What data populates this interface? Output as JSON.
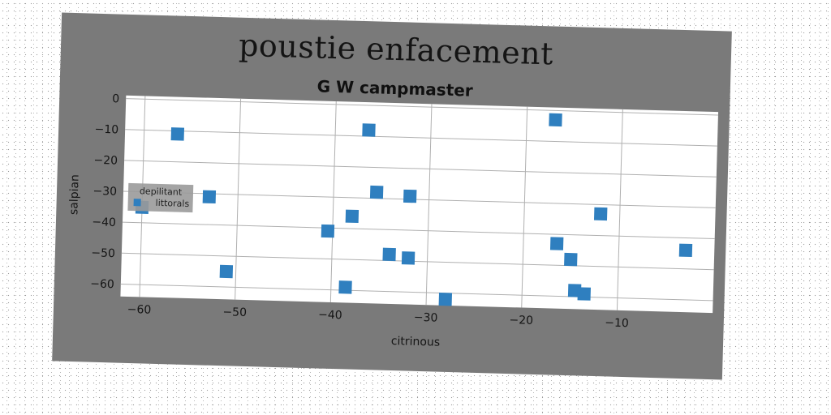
{
  "figure": {
    "title": "poustie enfacement"
  },
  "chart_data": {
    "type": "scatter",
    "title": "G W campmaster",
    "xlabel": "citrinous",
    "ylabel": "salpian",
    "xlim": [
      -62,
      0
    ],
    "ylim": [
      -64,
      1
    ],
    "xticks": [
      -60,
      -50,
      -40,
      -30,
      -20,
      -10
    ],
    "yticks": [
      0,
      -10,
      -20,
      -30,
      -40,
      -50,
      -60
    ],
    "grid": true,
    "legend": {
      "title": "depilitant",
      "placement": "center-left"
    },
    "series": [
      {
        "name": "littorals",
        "color": "#2f7fbf",
        "marker": "square",
        "points": [
          {
            "x": -56.5,
            "y": -11
          },
          {
            "x": -60,
            "y": -35
          },
          {
            "x": -53,
            "y": -31
          },
          {
            "x": -51,
            "y": -55
          },
          {
            "x": -40.5,
            "y": -41
          },
          {
            "x": -38.5,
            "y": -59
          },
          {
            "x": -38,
            "y": -36
          },
          {
            "x": -36.5,
            "y": -8
          },
          {
            "x": -35.5,
            "y": -28
          },
          {
            "x": -34,
            "y": -48
          },
          {
            "x": -32,
            "y": -29
          },
          {
            "x": -32,
            "y": -49
          },
          {
            "x": -28,
            "y": -62
          },
          {
            "x": -17,
            "y": -3
          },
          {
            "x": -16.5,
            "y": -43
          },
          {
            "x": -15,
            "y": -48
          },
          {
            "x": -14.5,
            "y": -58
          },
          {
            "x": -13.5,
            "y": -59
          },
          {
            "x": -12,
            "y": -33
          },
          {
            "x": -3,
            "y": -44
          }
        ]
      }
    ]
  }
}
